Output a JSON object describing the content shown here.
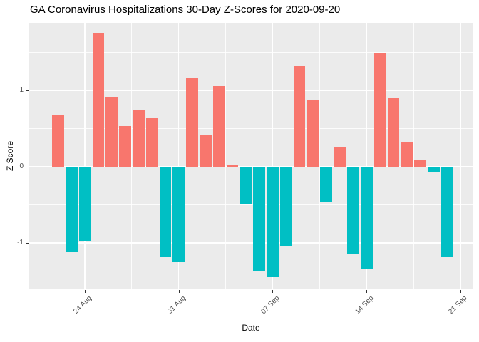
{
  "chart_data": {
    "type": "bar",
    "title": "GA Coronavirus Hospitalizations 30-Day Z-Scores for 2020-09-20",
    "xlabel": "Date",
    "ylabel": "Z Score",
    "categories": [
      "2020-08-22",
      "2020-08-23",
      "2020-08-24",
      "2020-08-25",
      "2020-08-26",
      "2020-08-27",
      "2020-08-28",
      "2020-08-29",
      "2020-08-30",
      "2020-08-31",
      "2020-09-01",
      "2020-09-02",
      "2020-09-03",
      "2020-09-04",
      "2020-09-05",
      "2020-09-06",
      "2020-09-07",
      "2020-09-08",
      "2020-09-09",
      "2020-09-10",
      "2020-09-11",
      "2020-09-12",
      "2020-09-13",
      "2020-09-14",
      "2020-09-15",
      "2020-09-16",
      "2020-09-17",
      "2020-09-18",
      "2020-09-19",
      "2020-09-20"
    ],
    "values": [
      0.67,
      -1.12,
      -0.97,
      1.75,
      0.92,
      0.53,
      0.75,
      0.64,
      -1.18,
      -1.25,
      1.17,
      0.42,
      1.06,
      0.02,
      -0.49,
      -1.38,
      -1.45,
      -1.04,
      1.33,
      0.88,
      -0.46,
      0.26,
      -1.15,
      -1.34,
      1.49,
      0.9,
      0.33,
      0.09,
      -0.07,
      -1.18
    ],
    "x_tick_labels": [
      "24 Aug",
      "31 Aug",
      "07 Sep",
      "14 Sep",
      "21 Sep"
    ],
    "x_tick_day_index": [
      2,
      9,
      16,
      23,
      30
    ],
    "x_minor_day_index": [
      -1.5,
      5.5,
      12.5,
      19.5,
      26.5
    ],
    "y_tick_labels": [
      "-1",
      "0",
      "1"
    ],
    "y_ticks": [
      -1,
      0,
      1
    ],
    "y_minor_ticks": [
      -1.5,
      -0.5,
      0.5,
      1.5
    ],
    "ylim": [
      -1.61,
      1.89
    ],
    "xlim_days": [
      -2.2,
      30.96
    ],
    "grid": "on",
    "legend_position": "none",
    "positive_color": "#F8766D",
    "negative_color": "#00BFC4",
    "panel_background": "#EBEBEB",
    "grid_color": "#FFFFFF",
    "tick_color": "#333333",
    "tick_label_color": "#4D4D4D"
  }
}
